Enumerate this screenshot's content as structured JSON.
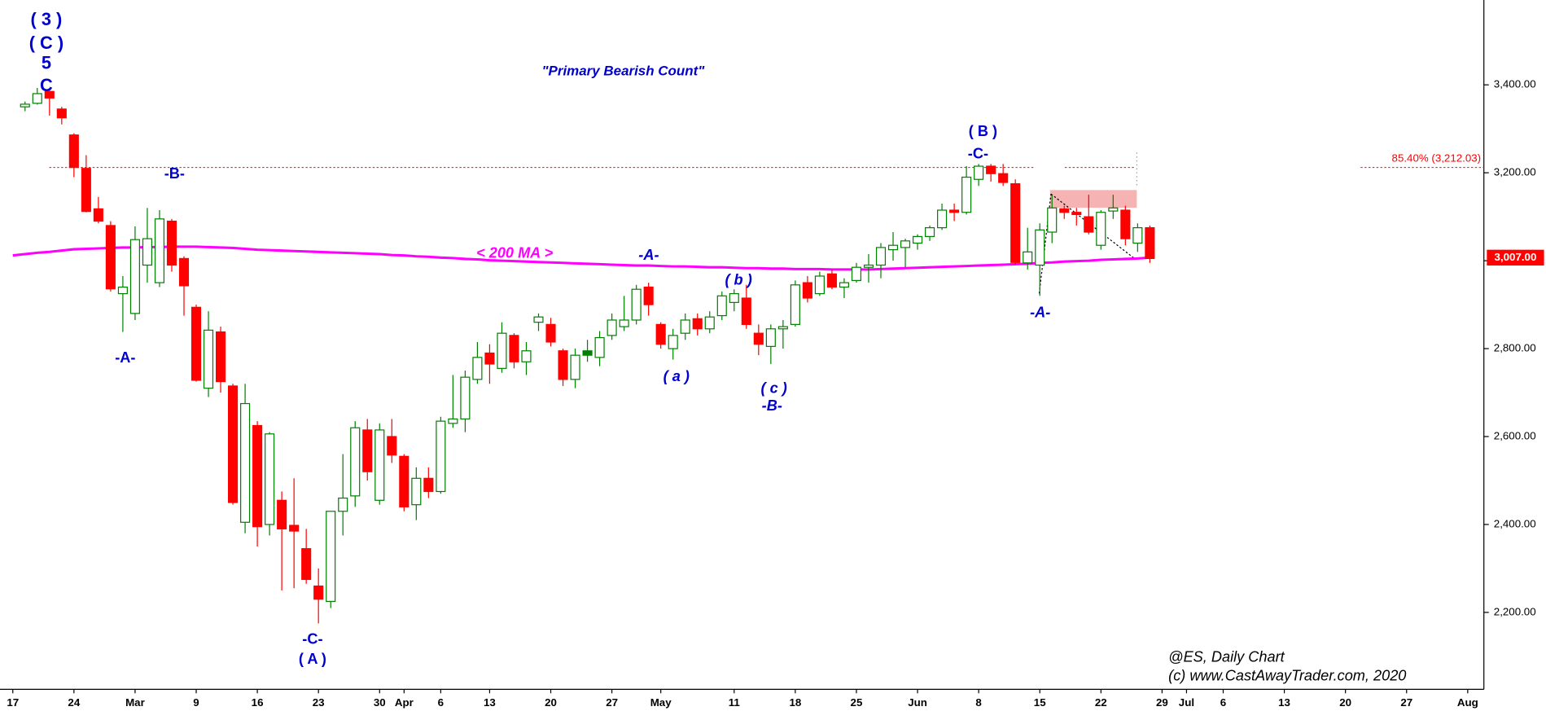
{
  "chart_data": {
    "type": "candlestick",
    "categories": [
      "17",
      null,
      null,
      null,
      null,
      "24",
      null,
      null,
      null,
      null,
      "Mar",
      null,
      null,
      null,
      null,
      "9",
      null,
      null,
      null,
      null,
      "16",
      null,
      null,
      null,
      null,
      "23",
      null,
      null,
      null,
      null,
      "30",
      null,
      "Apr",
      null,
      null,
      "6",
      null,
      null,
      null,
      "13",
      null,
      null,
      null,
      null,
      "20",
      null,
      null,
      null,
      null,
      "27",
      null,
      null,
      null,
      "May",
      null,
      null,
      null,
      null,
      null,
      "11",
      null,
      null,
      null,
      null,
      "18",
      null,
      null,
      null,
      null,
      "25",
      null,
      null,
      null,
      null,
      "Jun",
      null,
      null,
      null,
      null,
      "8",
      null,
      null,
      null,
      null,
      "15",
      null,
      null,
      null,
      null,
      "22",
      null,
      null,
      null,
      null,
      "29",
      null,
      "Jul",
      null,
      null,
      "6",
      null,
      null,
      null,
      null,
      "13",
      null,
      null,
      null,
      null,
      "20",
      null,
      null,
      null,
      null,
      "27",
      null,
      null,
      null,
      null,
      "Aug"
    ],
    "ohlc": [
      null,
      [
        3350,
        3362,
        3340,
        3356
      ],
      [
        3358,
        3393,
        3355,
        3380
      ],
      [
        3385,
        3392,
        3330,
        3370
      ],
      [
        3345,
        3350,
        3310,
        3325
      ],
      [
        3286,
        3290,
        3190,
        3212
      ],
      [
        3210,
        3240,
        3110,
        3112
      ],
      [
        3118,
        3145,
        3085,
        3090
      ],
      [
        3080,
        3090,
        2930,
        2936
      ],
      [
        2925,
        2965,
        2838,
        2940
      ],
      [
        2880,
        3078,
        2865,
        3048
      ],
      [
        2990,
        3120,
        2950,
        3050
      ],
      [
        2950,
        3115,
        2940,
        3095
      ],
      [
        3090,
        3095,
        2975,
        2990
      ],
      [
        3005,
        3010,
        2875,
        2943
      ],
      [
        2894,
        2900,
        2725,
        2728
      ],
      [
        2710,
        2885,
        2690,
        2842
      ],
      [
        2838,
        2850,
        2700,
        2725
      ],
      [
        2715,
        2720,
        2445,
        2450
      ],
      [
        2405,
        2720,
        2380,
        2675
      ],
      [
        2625,
        2635,
        2350,
        2395
      ],
      [
        2400,
        2610,
        2375,
        2606
      ],
      [
        2455,
        2475,
        2250,
        2390
      ],
      [
        2398,
        2505,
        2255,
        2385
      ],
      [
        2345,
        2390,
        2265,
        2275
      ],
      [
        2260,
        2300,
        2175,
        2230
      ],
      [
        2225,
        2430,
        2210,
        2430
      ],
      [
        2430,
        2560,
        2375,
        2460
      ],
      [
        2465,
        2635,
        2440,
        2620
      ],
      [
        2615,
        2640,
        2500,
        2520
      ],
      [
        2455,
        2630,
        2445,
        2615
      ],
      [
        2600,
        2640,
        2540,
        2558
      ],
      [
        2555,
        2560,
        2430,
        2440
      ],
      [
        2445,
        2530,
        2410,
        2505
      ],
      [
        2505,
        2530,
        2460,
        2475
      ],
      [
        2475,
        2645,
        2470,
        2635
      ],
      [
        2630,
        2740,
        2620,
        2640
      ],
      [
        2640,
        2750,
        2610,
        2735
      ],
      [
        2730,
        2815,
        2720,
        2780
      ],
      [
        2790,
        2810,
        2720,
        2765
      ],
      [
        2755,
        2860,
        2745,
        2835
      ],
      [
        2830,
        2835,
        2755,
        2770
      ],
      [
        2770,
        2815,
        2740,
        2795
      ],
      [
        2860,
        2880,
        2840,
        2872
      ],
      [
        2855,
        2870,
        2805,
        2815
      ],
      [
        2795,
        2800,
        2715,
        2730
      ],
      [
        2730,
        2800,
        2710,
        2785
      ],
      [
        2795,
        2820,
        2770,
        2785
      ],
      [
        2780,
        2840,
        2760,
        2825
      ],
      [
        2830,
        2880,
        2820,
        2865
      ],
      [
        2850,
        2920,
        2840,
        2865
      ],
      [
        2865,
        2945,
        2855,
        2935
      ],
      [
        2940,
        2950,
        2875,
        2900
      ],
      [
        2855,
        2860,
        2800,
        2810
      ],
      [
        2800,
        2845,
        2775,
        2830
      ],
      [
        2835,
        2880,
        2820,
        2865
      ],
      [
        2868,
        2880,
        2830,
        2845
      ],
      [
        2845,
        2885,
        2835,
        2872
      ],
      [
        2875,
        2930,
        2865,
        2920
      ],
      [
        2905,
        2935,
        2885,
        2925
      ],
      [
        2915,
        2945,
        2845,
        2855
      ],
      [
        2835,
        2855,
        2785,
        2810
      ],
      [
        2805,
        2855,
        2765,
        2845
      ],
      [
        2845,
        2865,
        2800,
        2850
      ],
      [
        2855,
        2955,
        2850,
        2945
      ],
      [
        2950,
        2965,
        2905,
        2915
      ],
      [
        2925,
        2975,
        2920,
        2965
      ],
      [
        2970,
        2980,
        2935,
        2940
      ],
      [
        2940,
        2960,
        2915,
        2950
      ],
      [
        2955,
        2995,
        2950,
        2985
      ],
      [
        2985,
        3015,
        2950,
        2990
      ],
      [
        2990,
        3040,
        2960,
        3030
      ],
      [
        3025,
        3065,
        3000,
        3035
      ],
      [
        3030,
        3050,
        2985,
        3045
      ],
      [
        3040,
        3060,
        3025,
        3055
      ],
      [
        3055,
        3080,
        3045,
        3075
      ],
      [
        3075,
        3130,
        3070,
        3115
      ],
      [
        3115,
        3130,
        3090,
        3110
      ],
      [
        3110,
        3215,
        3105,
        3190
      ],
      [
        3185,
        3220,
        3170,
        3215
      ],
      [
        3215,
        3220,
        3180,
        3198
      ],
      [
        3198,
        3220,
        3170,
        3178
      ],
      [
        3175,
        3185,
        2990,
        2996
      ],
      [
        2995,
        3075,
        2980,
        3020
      ],
      [
        2990,
        3085,
        2920,
        3070
      ],
      [
        3065,
        3150,
        3040,
        3120
      ],
      [
        3118,
        3125,
        3095,
        3110
      ],
      [
        3110,
        3120,
        3080,
        3105
      ],
      [
        3100,
        3150,
        3060,
        3065
      ],
      [
        3035,
        3115,
        3025,
        3110
      ],
      [
        3113,
        3150,
        3095,
        3120
      ],
      [
        3115,
        3125,
        3035,
        3050
      ],
      [
        3040,
        3085,
        3020,
        3075
      ],
      [
        3075,
        3080,
        2995,
        3005
      ],
      null,
      null,
      null,
      null,
      null,
      null,
      null,
      null,
      null,
      null,
      null,
      null,
      null,
      null,
      null,
      null,
      null,
      null,
      null,
      null,
      null,
      null,
      null,
      null,
      null,
      null
    ],
    "up_color": "#008000",
    "down_color": "#ff0000",
    "series": [
      {
        "name": "< 200 MA >",
        "color": "#ff00ff",
        "values": [
          3012,
          3015,
          3018,
          3020,
          3023,
          3026,
          3027,
          3028,
          3029,
          3030,
          3030,
          3031,
          3031,
          3032,
          3032,
          3032,
          3031,
          3030,
          3029,
          3027,
          3025,
          3024,
          3023,
          3022,
          3021,
          3020,
          3019,
          3018,
          3017,
          3016,
          3015,
          3013,
          3012,
          3010,
          3009,
          3007,
          3006,
          3004,
          3003,
          3001,
          3000,
          2999,
          2998,
          2997,
          2996,
          2995,
          2994,
          2993,
          2992,
          2991,
          2990,
          2989,
          2989,
          2988,
          2987,
          2987,
          2986,
          2985,
          2985,
          2984,
          2983,
          2983,
          2982,
          2982,
          2981,
          2981,
          2981,
          2980,
          2980,
          2980,
          2980,
          2981,
          2982,
          2983,
          2984,
          2985,
          2986,
          2987,
          2988,
          2989,
          2990,
          2991,
          2992,
          2993,
          2995,
          2996,
          2998,
          2999,
          3000,
          3002,
          3003,
          3004,
          3005,
          3007,
          null,
          null,
          null,
          null,
          null,
          null,
          null,
          null,
          null,
          null,
          null,
          null,
          null,
          null,
          null,
          null,
          null,
          null,
          null,
          null,
          null,
          null,
          null,
          null,
          null,
          null
        ]
      }
    ],
    "ylim": [
      2025,
      3593
    ],
    "yticks": [
      {
        "value": 2200,
        "label": "2,200.00"
      },
      {
        "value": 2400,
        "label": "2,400.00"
      },
      {
        "value": 2600,
        "label": "2,600.00"
      },
      {
        "value": 2800,
        "label": "2,800.00"
      },
      {
        "value": 3000,
        "label": "3,000.00"
      },
      {
        "value": 3200,
        "label": "3,200.00"
      },
      {
        "value": 3400,
        "label": "3,400.00"
      }
    ],
    "fib_level": {
      "value": 3212.03,
      "label": "85.40% (3,212.03)",
      "color": "#ff0000"
    },
    "last_price": {
      "value": 3007,
      "label": "3,007.00",
      "color": "#ff0000"
    },
    "annotations": [
      "( 3 )",
      "( C )",
      "5",
      "C",
      "\"Primary Bearish Count\"",
      "-B-",
      "-A-",
      "-C-",
      "( A )",
      "-A-",
      "( a )",
      "( b )",
      "( c )",
      "-B-",
      "( B )",
      "-C-",
      "-A-",
      "@ES,  Daily Chart",
      "(c) www.CastAwayTrader.com, 2020"
    ]
  }
}
